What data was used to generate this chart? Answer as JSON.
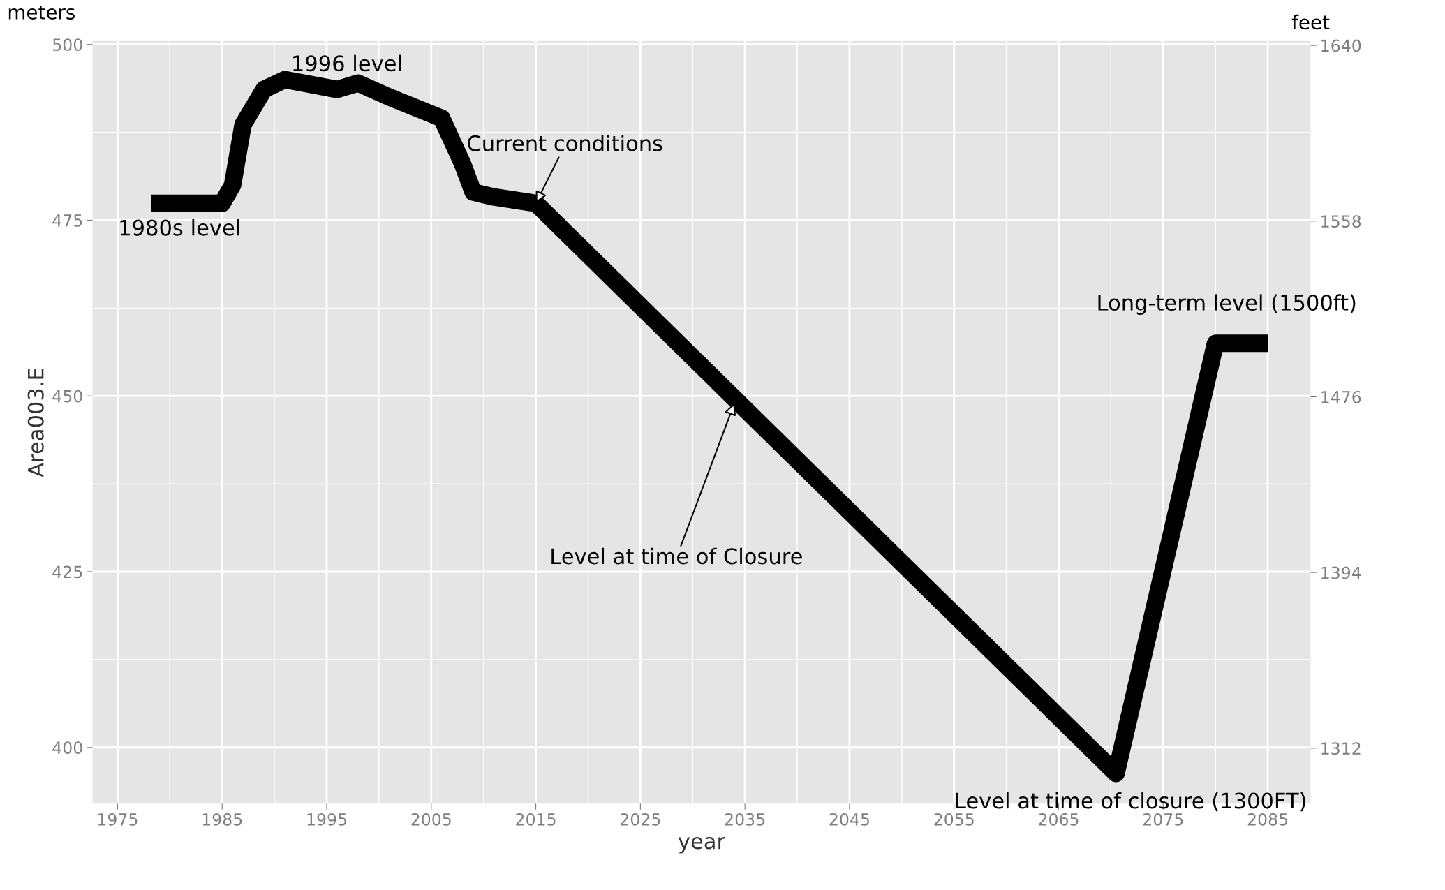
{
  "chart_data": {
    "type": "line",
    "xlabel": "year",
    "ylabel": "Area003.E",
    "y2label": "feet",
    "x": [
      1978.2,
      1985,
      1986,
      1987,
      1989,
      1991,
      1996,
      1998,
      2001,
      2006,
      2008,
      2009,
      2011,
      2015,
      2070.5,
      2080,
      2085
    ],
    "series": [
      {
        "color": "#000000",
        "values": [
          477.4,
          477.4,
          480,
          488.6,
          493.6,
          495,
          493.6,
          494.5,
          492.5,
          489.5,
          483,
          479,
          478.3,
          477.4,
          396.3,
          457.5,
          457.5
        ]
      }
    ],
    "xlim": [
      1972.6,
      2089.1
    ],
    "xticks": [
      1975,
      1985,
      1995,
      2005,
      2015,
      2025,
      2035,
      2045,
      2055,
      2065,
      2075,
      2085
    ],
    "ylim": [
      392,
      500.5
    ],
    "yticks": [
      400,
      425,
      450,
      475,
      500
    ],
    "y2lim": [
      1286.1,
      1642.1
    ],
    "y2ticks": [
      1312,
      1394,
      1476,
      1558,
      1640
    ],
    "grid": true,
    "annotations": [
      {
        "text": "1980s level",
        "x": 1980,
        "y": 477.4
      },
      {
        "text": "Current conditions",
        "x": 2015,
        "y": 477.4
      },
      {
        "text": "1996 level",
        "x": 1996,
        "y": 493.6
      },
      {
        "text": "Level at time of Closure",
        "x": 2034,
        "y": 449
      },
      {
        "text": "Long-term level (1500ft)",
        "x": 2082,
        "y": 457.5
      },
      {
        "text": "Level at time of closure (1300FT)",
        "x": 2070.5,
        "y": 396.3
      },
      "meters"
    ]
  }
}
